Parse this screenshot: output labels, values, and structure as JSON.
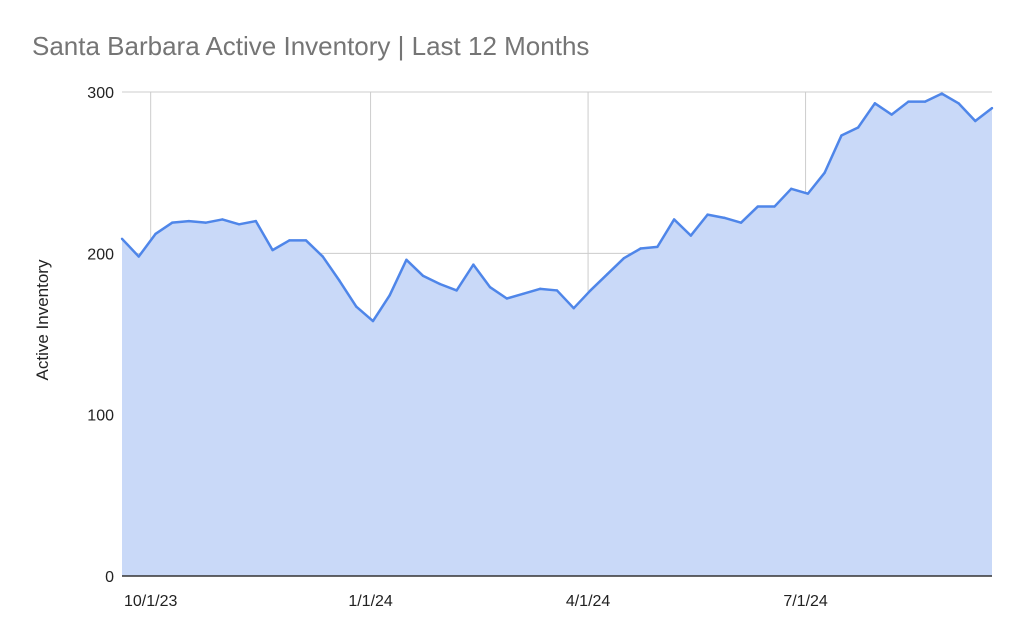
{
  "chart_data": {
    "type": "area",
    "title": "Santa Barbara Active Inventory | Last 12 Months",
    "xlabel": "",
    "ylabel": "Active Inventory",
    "ylim": [
      0,
      300
    ],
    "yticks": [
      0,
      100,
      200,
      300
    ],
    "xticks": [
      "10/1/23",
      "1/1/24",
      "4/1/24",
      "7/1/24"
    ],
    "grid": true,
    "legend": "none",
    "line_color": "#4f86e9",
    "fill_color": "#c9d9f8",
    "series": [
      {
        "x": [
          "2023-09-19",
          "2023-09-26",
          "2023-10-03",
          "2023-10-10",
          "2023-10-17",
          "2023-10-24",
          "2023-10-31",
          "2023-11-07",
          "2023-11-14",
          "2023-11-21",
          "2023-11-28",
          "2023-12-05",
          "2023-12-12",
          "2023-12-19",
          "2023-12-26",
          "2024-01-02",
          "2024-01-09",
          "2024-01-16",
          "2024-01-23",
          "2024-01-30",
          "2024-02-06",
          "2024-02-13",
          "2024-02-20",
          "2024-02-27",
          "2024-03-05",
          "2024-03-12",
          "2024-03-19",
          "2024-03-26",
          "2024-04-02",
          "2024-04-09",
          "2024-04-16",
          "2024-04-23",
          "2024-04-30",
          "2024-05-07",
          "2024-05-14",
          "2024-05-21",
          "2024-05-28",
          "2024-06-04",
          "2024-06-11",
          "2024-06-18",
          "2024-06-25",
          "2024-07-02",
          "2024-07-09",
          "2024-07-16",
          "2024-07-23",
          "2024-07-30",
          "2024-08-06",
          "2024-08-13",
          "2024-08-20",
          "2024-08-27",
          "2024-09-03",
          "2024-09-10",
          "2024-09-17"
        ],
        "values": [
          209,
          198,
          212,
          219,
          220,
          219,
          221,
          218,
          220,
          202,
          208,
          208,
          198,
          183,
          167,
          158,
          174,
          196,
          186,
          181,
          177,
          193,
          179,
          172,
          175,
          178,
          177,
          166,
          177,
          187,
          197,
          203,
          204,
          221,
          211,
          224,
          222,
          219,
          229,
          229,
          240,
          237,
          250,
          273,
          278,
          293,
          286,
          294,
          294,
          299,
          293,
          282,
          290
        ]
      }
    ]
  }
}
